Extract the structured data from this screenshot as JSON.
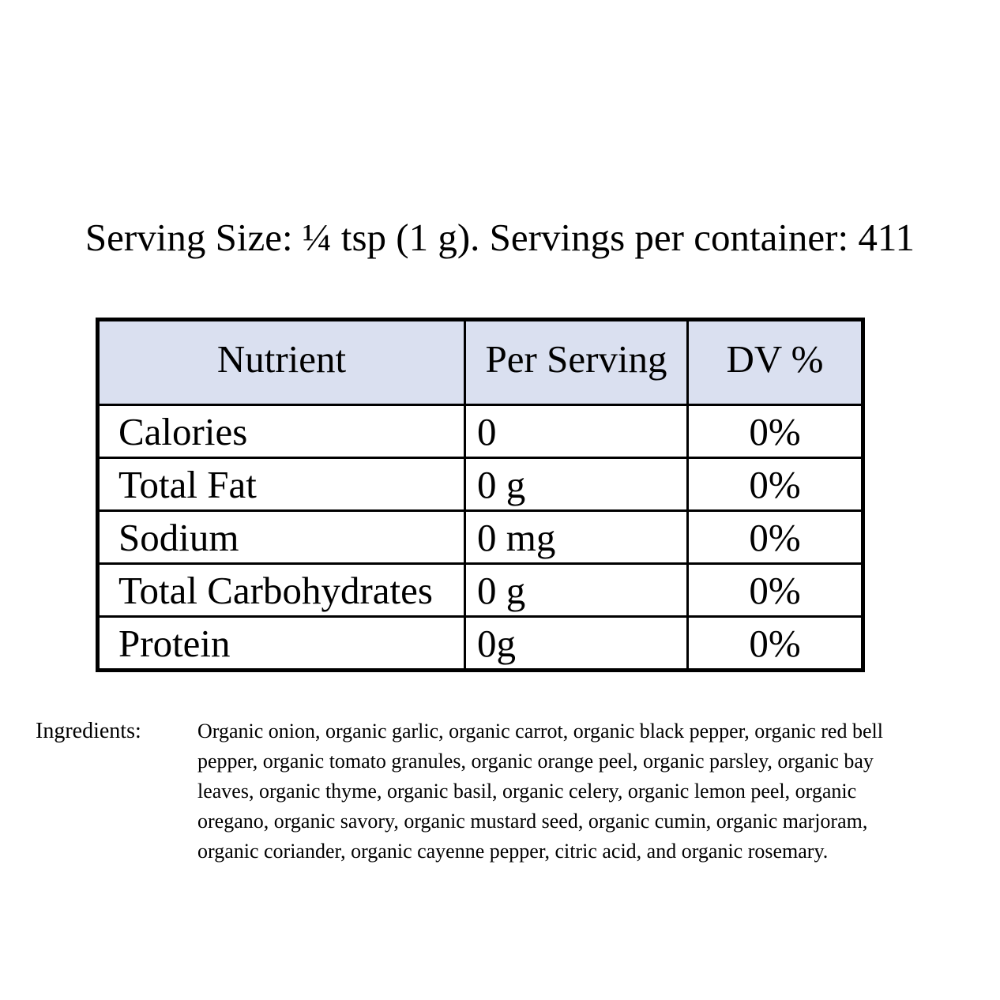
{
  "header": {
    "serving_line": "Serving Size: ¼ tsp (1 g). Servings per container: 411"
  },
  "table": {
    "header_bg": "#dae0f0",
    "border_color": "#000000",
    "headers": [
      "Nutrient",
      "Per Serving",
      "DV %"
    ],
    "rows": [
      {
        "nutrient": "Calories",
        "per_serving": "0",
        "dv": "0%"
      },
      {
        "nutrient": "Total Fat",
        "per_serving": "0 g",
        "dv": "0%"
      },
      {
        "nutrient": "Sodium",
        "per_serving": "0 mg",
        "dv": "0%"
      },
      {
        "nutrient": "Total Carbohydrates",
        "per_serving": "0 g",
        "dv": "0%"
      },
      {
        "nutrient": "Protein",
        "per_serving": "0g",
        "dv": "0%"
      }
    ]
  },
  "ingredients": {
    "label": "Ingredients:",
    "text": "Organic onion, organic garlic, organic carrot, organic black pepper, organic red bell pepper, organic tomato granules, organic orange peel, organic parsley, organic bay leaves, organic thyme, organic basil, organic celery, organic lemon peel, organic oregano, organic savory, organic mustard seed, organic cumin, organic marjoram, organic coriander, organic cayenne pepper, citric acid, and organic rosemary."
  }
}
